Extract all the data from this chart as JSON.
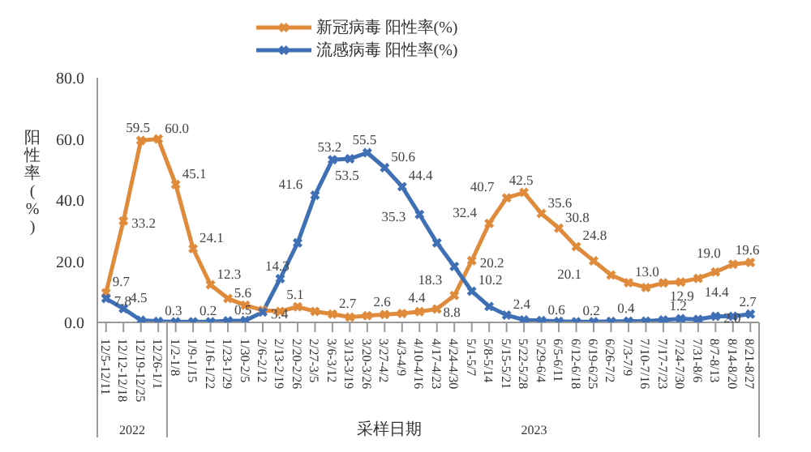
{
  "chart_data": {
    "type": "line",
    "xlabel": "采样日期",
    "ylabel": "阳性率(%)",
    "categories": [
      "12/5-12/11",
      "12/12-12/18",
      "12/19-12/25",
      "12/26-1/1",
      "1/2-1/8",
      "1/9-1/15",
      "1/16-1/22",
      "1/23-1/29",
      "1/30-2/5",
      "2/6-2/12",
      "2/13-2/19",
      "2/20-2/26",
      "2/27-3/5",
      "3/6-3/12",
      "3/13-3/19",
      "3/20-3/26",
      "3/27-4/2",
      "4/3-4/9",
      "4/10-4/16",
      "4/17-4/23",
      "4/24-4/30",
      "5/1-5/7",
      "5/8-5/14",
      "5/15-5/21",
      "5/22-5/28",
      "5/29-6/4",
      "6/5-6/11",
      "6/12-6/18",
      "6/19-6/25",
      "6/26-7/2",
      "7/3-7/9",
      "7/10-7/16",
      "7/17-7/23",
      "7/24-7/30",
      "7/31-8/6",
      "8/7-8/13",
      "8/14-8/20",
      "8/21-8/27"
    ],
    "series": [
      {
        "name": "新冠病毒 阳性率(%)",
        "color": "#e08a3c",
        "values": [
          9.7,
          33.2,
          59.5,
          60.0,
          45.1,
          24.1,
          12.3,
          7.8,
          5.6,
          4.0,
          3.6,
          5.1,
          3.6,
          2.7,
          1.7,
          2.2,
          2.6,
          2.9,
          3.5,
          4.4,
          8.8,
          20.2,
          32.4,
          40.7,
          42.5,
          35.6,
          30.8,
          24.8,
          20.1,
          15.5,
          13.0,
          11.4,
          12.9,
          13.2,
          14.4,
          16.5,
          19.0,
          19.6
        ],
        "value_labels": [
          "9.7",
          "33.2",
          "59.5",
          "60.0",
          "45.1",
          "24.1",
          "12.3",
          null,
          "5.6",
          null,
          null,
          "5.1",
          null,
          "2.7",
          null,
          null,
          "2.6",
          null,
          null,
          "4.4",
          "8.8",
          "20.2",
          "32.4",
          "40.7",
          "42.5",
          "35.6",
          "30.8",
          "24.8",
          "20.1",
          null,
          "13.0",
          null,
          "12.9",
          null,
          "14.4",
          null,
          "19.0",
          "19.6"
        ]
      },
      {
        "name": "流感病毒 阳性率(%)",
        "color": "#3f6fb5",
        "values": [
          7.8,
          4.5,
          0.7,
          0.3,
          0.2,
          0.2,
          0.2,
          0.5,
          0.6,
          3.4,
          14.3,
          26.0,
          41.6,
          53.2,
          53.5,
          55.5,
          50.6,
          44.4,
          35.3,
          26.0,
          18.3,
          10.2,
          5.2,
          2.4,
          0.8,
          0.6,
          0.3,
          0.2,
          0.2,
          0.3,
          0.4,
          0.4,
          0.8,
          1.2,
          1.0,
          2.0,
          2.0,
          2.7
        ],
        "value_labels": [
          "7.8",
          "4.5",
          null,
          "0.3",
          null,
          "0.2",
          null,
          "0.5",
          null,
          "3.4",
          "14.3",
          null,
          "41.6",
          "53.2",
          "53.5",
          "55.5",
          "50.6",
          "44.4",
          "35.3",
          null,
          "18.3",
          "10.2",
          null,
          "2.4",
          null,
          "0.6",
          null,
          "0.2",
          null,
          null,
          "0.4",
          null,
          null,
          "1.2",
          null,
          "2.0",
          null,
          "2.7"
        ]
      }
    ],
    "ylim": [
      0,
      80
    ],
    "yticks": [
      {
        "value": 0,
        "label": "0.0"
      },
      {
        "value": 20,
        "label": "20.0"
      },
      {
        "value": 40,
        "label": "40.0"
      },
      {
        "value": 60,
        "label": "60.0"
      },
      {
        "value": 80,
        "label": "80.0"
      }
    ],
    "annotations": [
      "2022",
      "2023"
    ],
    "marker": "cross",
    "line_style": "solid",
    "legend": "top",
    "grid": false
  }
}
